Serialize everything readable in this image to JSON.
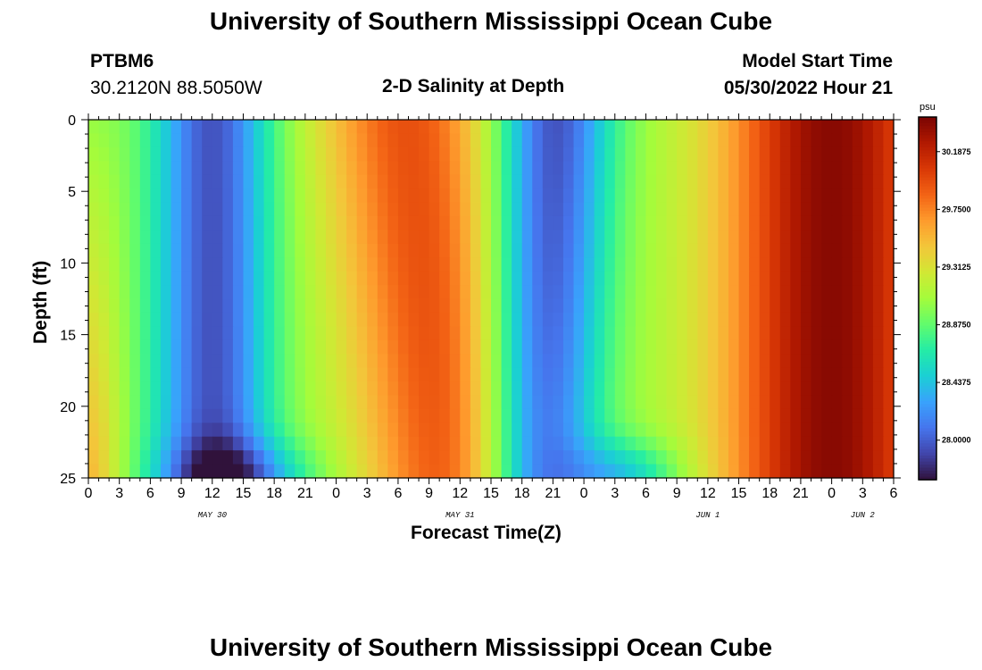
{
  "page": {
    "title": "University of Southern Mississippi Ocean Cube",
    "title_bottom": "University of Southern Mississippi Ocean Cube",
    "station": "PTBM6",
    "coords": "30.2120N  88.5050W",
    "subtitle": "2-D Salinity at Depth",
    "model_start_label": "Model Start Time",
    "model_start_value": "05/30/2022 Hour 21"
  },
  "chart_data": {
    "type": "heatmap",
    "title": "2-D Salinity at Depth",
    "xlabel": "Forecast Time(Z)",
    "ylabel": "Depth (ft)",
    "x_tick_labels": [
      "0",
      "3",
      "6",
      "9",
      "12",
      "15",
      "18",
      "21",
      "0",
      "3",
      "6",
      "9",
      "12",
      "15",
      "18",
      "21",
      "0",
      "3",
      "6",
      "9",
      "12",
      "15",
      "18",
      "21",
      "0",
      "3",
      "6"
    ],
    "x_hours_range": [
      0,
      78
    ],
    "date_labels": [
      {
        "label": "MAY 30",
        "hour": 12
      },
      {
        "label": "MAY 31",
        "hour": 36
      },
      {
        "label": "JUN 1",
        "hour": 60
      },
      {
        "label": "JUN 2",
        "hour": 75
      }
    ],
    "y_ticks": [
      0,
      5,
      10,
      15,
      20,
      25
    ],
    "y_tick_labels": [
      "0",
      "5",
      "10",
      "15",
      "20",
      "25"
    ],
    "ylim": [
      0,
      25
    ],
    "colorbar": {
      "unit": "psu",
      "min": 27.7,
      "max": 30.45,
      "ticks": [
        30.1875,
        29.75,
        29.3125,
        28.875,
        28.4375,
        28.0
      ],
      "tick_labels": [
        "30.1875",
        "29.7500",
        "29.3125",
        "28.8750",
        "28.4375",
        "28.0000"
      ],
      "colors": [
        "#30123b",
        "#4145ab",
        "#4675ed",
        "#39a2fc",
        "#1bcfd4",
        "#24eca6",
        "#61fc6c",
        "#a4fc3b",
        "#d1e834",
        "#f3c63a",
        "#fe9b2d",
        "#f36315",
        "#d93806",
        "#b11901",
        "#7a0402"
      ]
    },
    "features": [
      {
        "name": "low salinity band 1",
        "hour_center": 12,
        "value": 27.95
      },
      {
        "name": "high salinity band 1",
        "hour_center": 32,
        "value": 29.95
      },
      {
        "name": "low salinity band 2",
        "hour_center": 45,
        "value": 27.9
      },
      {
        "name": "high salinity band 2",
        "hour_center": 72,
        "value": 30.35
      }
    ]
  }
}
